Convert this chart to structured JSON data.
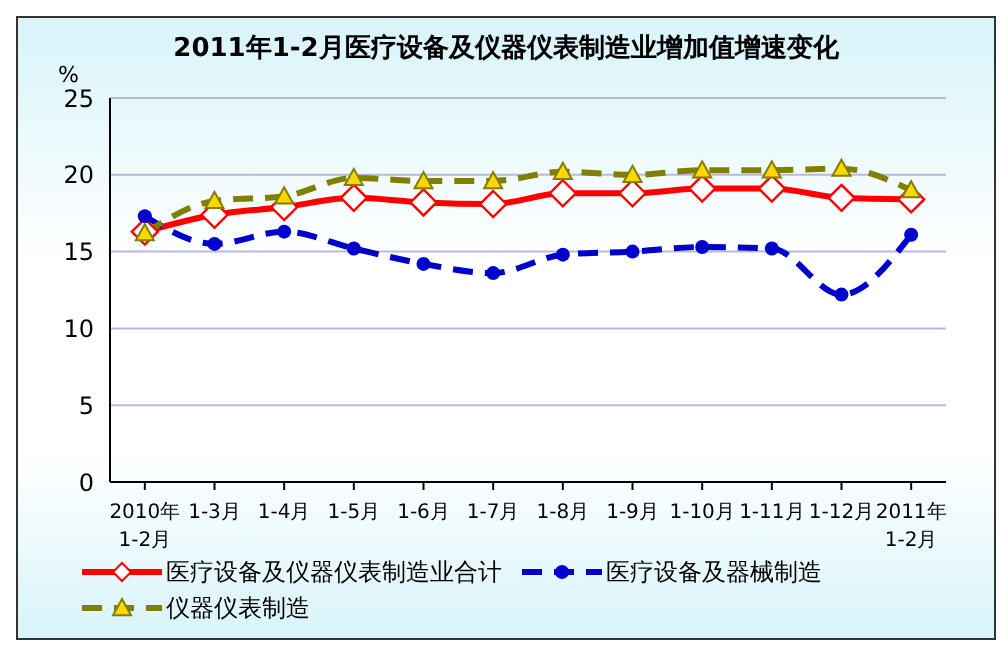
{
  "chart_data": {
    "type": "line",
    "title": "2011年1-2月医疗设备及仪器仪表制造业增加值增速变化",
    "ylabel": "%",
    "categories": [
      "2010年\n1-2月",
      "1-3月",
      "1-4月",
      "1-5月",
      "1-6月",
      "1-7月",
      "1-8月",
      "1-9月",
      "1-10月",
      "1-11月",
      "1-12月",
      "2011年\n1-2月"
    ],
    "series": [
      {
        "name": "医疗设备及仪器仪表制造业合计",
        "color": "#ff0000",
        "marker": "diamond",
        "line_style": "solid",
        "values": [
          16.3,
          17.4,
          17.9,
          18.5,
          18.2,
          18.1,
          18.8,
          18.8,
          19.1,
          19.1,
          18.5,
          18.4
        ]
      },
      {
        "name": "医疗设备及器械制造",
        "color": "#0000cc",
        "marker": "circle",
        "line_style": "dashed",
        "values": [
          17.3,
          15.5,
          16.3,
          15.2,
          14.2,
          13.6,
          14.8,
          15.0,
          15.3,
          15.2,
          12.2,
          16.1
        ]
      },
      {
        "name": "仪器仪表制造",
        "color": "#808000",
        "marker": "triangle",
        "line_style": "dashed",
        "values": [
          16.2,
          18.3,
          18.6,
          19.8,
          19.6,
          19.6,
          20.2,
          20.0,
          20.3,
          20.3,
          20.4,
          19.0
        ]
      }
    ],
    "ylim": [
      0,
      25
    ],
    "yticks": [
      0,
      5,
      10,
      15,
      20,
      25
    ],
    "grid": "y",
    "legend": "bottom"
  }
}
